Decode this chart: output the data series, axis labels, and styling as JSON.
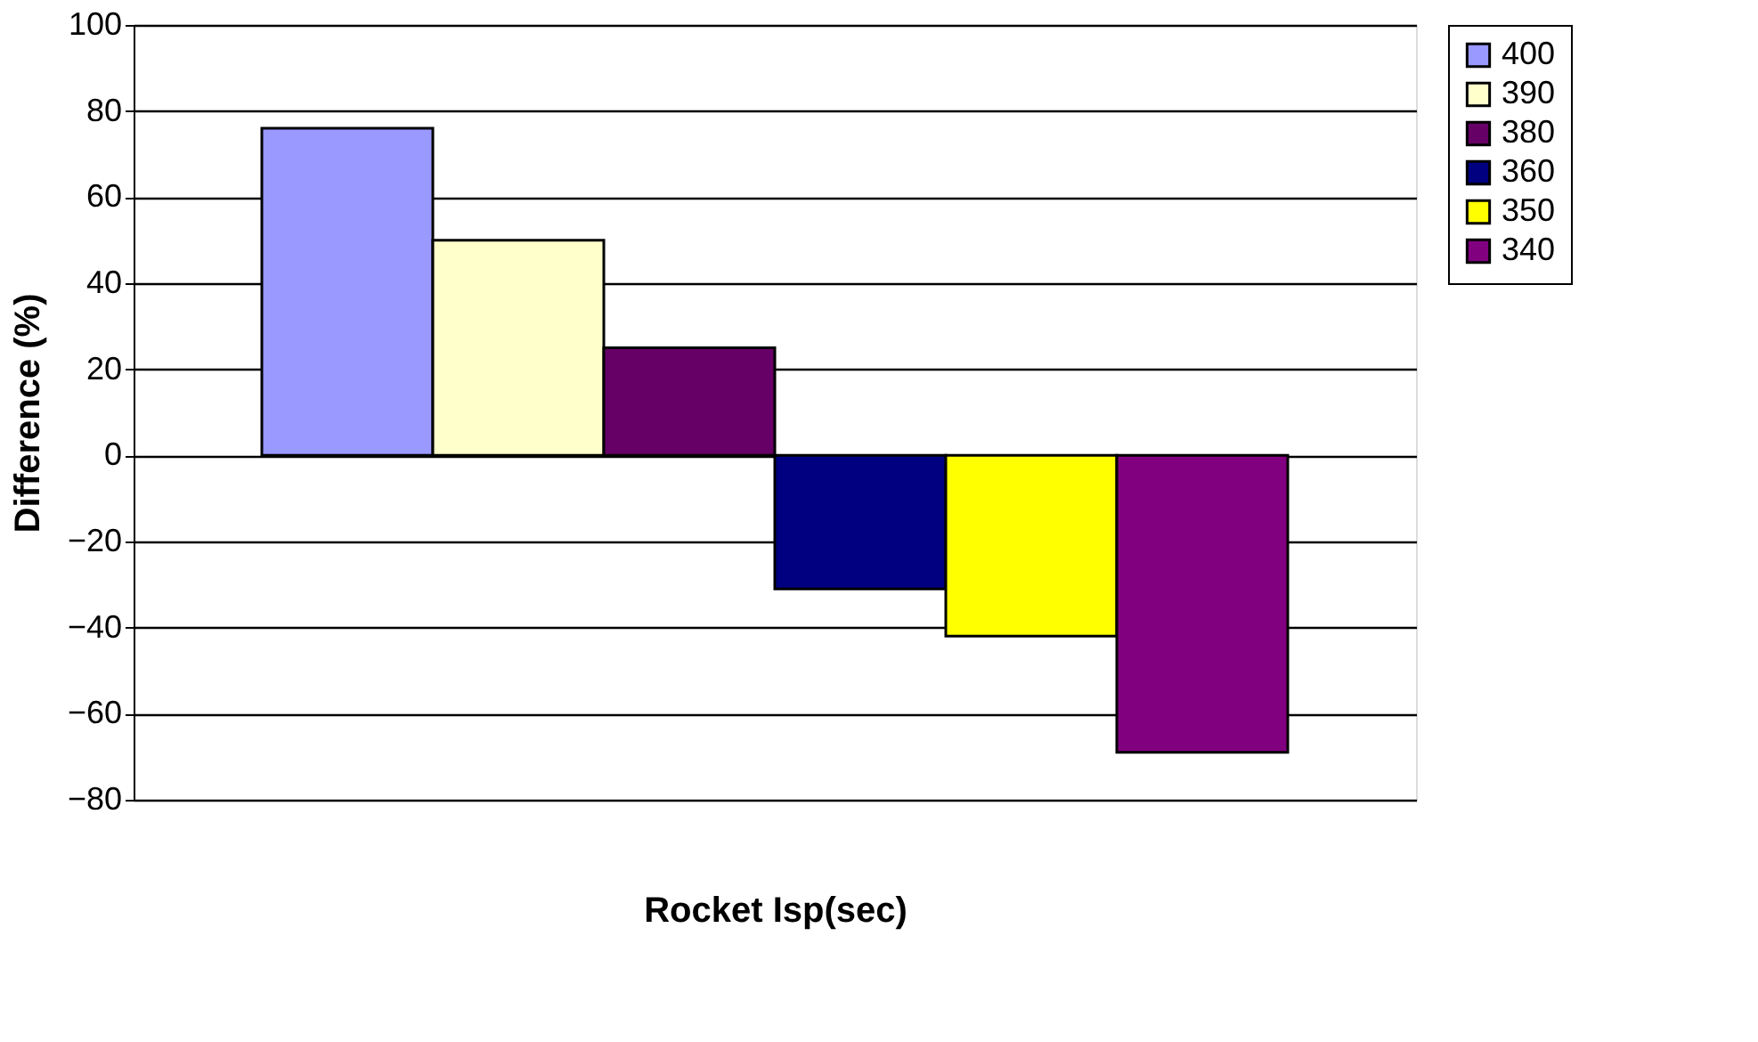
{
  "chart_data": {
    "type": "bar",
    "xlabel": "Rocket Isp(sec)",
    "ylabel": "Difference (%)",
    "categories": [
      null
    ],
    "series": [
      {
        "name": "400",
        "color": "#9999ff",
        "values": [
          76
        ]
      },
      {
        "name": "390",
        "color": "#ffffcc",
        "values": [
          50
        ]
      },
      {
        "name": "380",
        "color": "#660066",
        "values": [
          25
        ]
      },
      {
        "name": "360",
        "color": "#000080",
        "values": [
          -31
        ]
      },
      {
        "name": "350",
        "color": "#ffff00",
        "values": [
          -42
        ]
      },
      {
        "name": "340",
        "color": "#800080",
        "values": [
          -69
        ]
      }
    ],
    "ylim": [
      -80,
      100
    ],
    "yticks": [
      -80,
      -60,
      -40,
      -20,
      0,
      20,
      40,
      60,
      80,
      100
    ],
    "grid": "y",
    "legend": "right"
  }
}
